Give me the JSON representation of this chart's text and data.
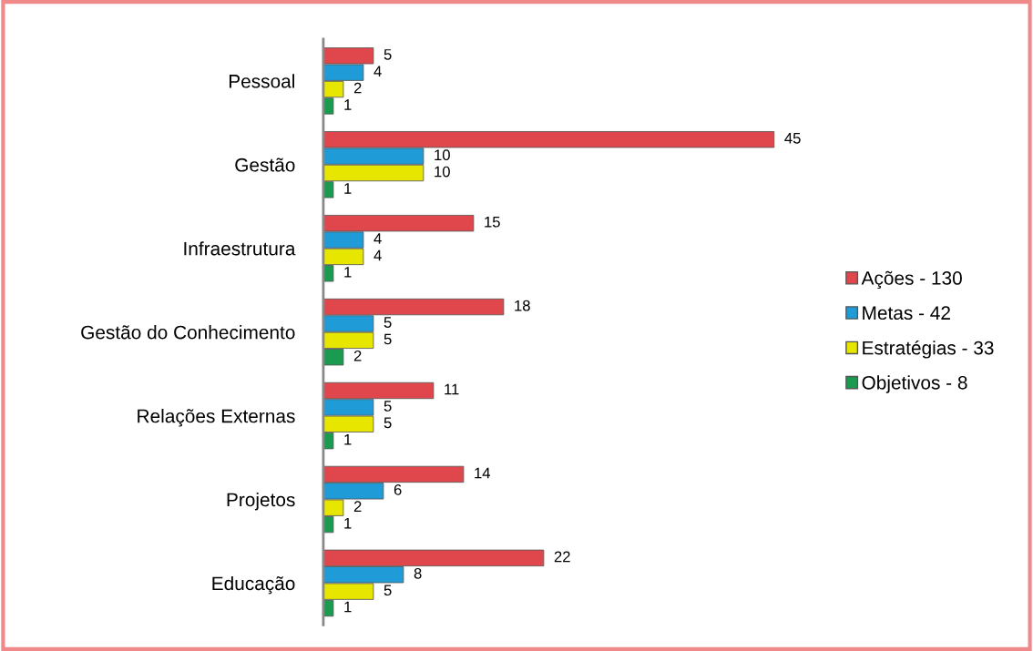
{
  "chart_data": {
    "type": "bar",
    "orientation": "horizontal",
    "data_labels": true,
    "legend": "right",
    "grid": false,
    "categories": [
      "Pessoal",
      "Gestão",
      "Infraestrutura",
      "Gestão do Conhecimento",
      "Relações Externas",
      "Projetos",
      "Educação"
    ],
    "series": [
      {
        "name": "Ações - 130",
        "color": "#e0474c",
        "values": [
          5,
          45,
          15,
          18,
          11,
          14,
          22
        ]
      },
      {
        "name": "Metas - 42",
        "color": "#1f9bd7",
        "values": [
          4,
          10,
          4,
          5,
          5,
          6,
          8
        ]
      },
      {
        "name": "Estratégias - 33",
        "color": "#e6e600",
        "values": [
          2,
          10,
          4,
          5,
          5,
          2,
          5
        ]
      },
      {
        "name": "Objetivos - 8",
        "color": "#1a9b50",
        "values": [
          1,
          1,
          1,
          2,
          1,
          1,
          1
        ]
      }
    ]
  }
}
